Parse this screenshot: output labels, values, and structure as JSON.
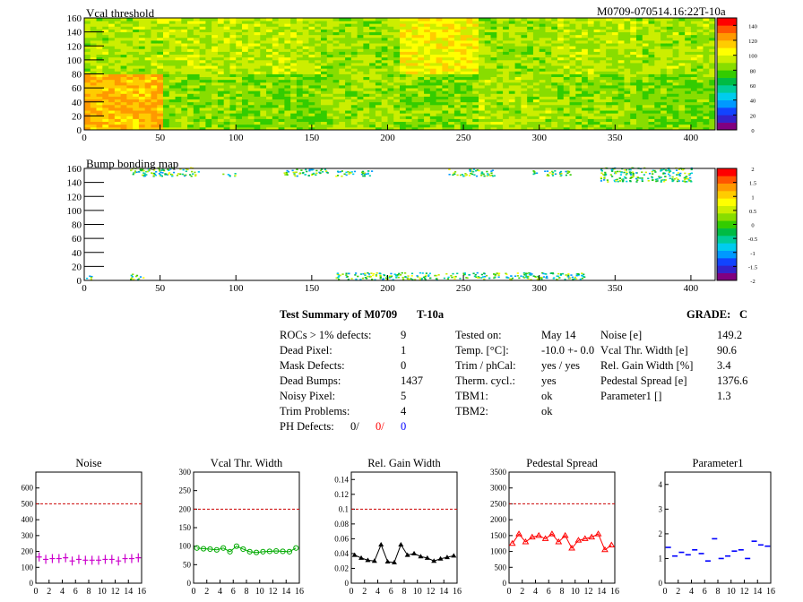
{
  "header": {
    "module_id": "M0709-070514.16:22T-10a"
  },
  "colors": {
    "red": "#ff0000",
    "blue": "#0000ff",
    "magenta": "#cc00cc",
    "green": "#00aa00",
    "black": "#000000",
    "dashed_limit": "#cc0000"
  },
  "summary": {
    "title": "Test Summary of M0709",
    "temp_label": "T-10a",
    "grade_label": "GRADE:",
    "grade": "C",
    "left": [
      {
        "label": "ROCs > 1% defects:",
        "value": "9"
      },
      {
        "label": "Dead Pixel:",
        "value": "1"
      },
      {
        "label": "Mask Defects:",
        "value": "0"
      },
      {
        "label": "Dead Bumps:",
        "value": "1437"
      },
      {
        "label": "Noisy Pixel:",
        "value": "5"
      },
      {
        "label": "Trim Problems:",
        "value": "4"
      }
    ],
    "ph_defects": {
      "label": "PH Defects:",
      "v1": "0/",
      "v2": "0/",
      "v3": "0"
    },
    "middle": [
      {
        "label": "Tested on:",
        "value": "May 14"
      },
      {
        "label": "Temp. [°C]:",
        "value": "-10.0 +- 0.0"
      },
      {
        "label": "Trim / phCal:",
        "value": "yes / yes"
      },
      {
        "label": "Therm. cycl.:",
        "value": "yes"
      },
      {
        "label": "TBM1:",
        "value": "ok"
      },
      {
        "label": "TBM2:",
        "value": "ok"
      }
    ],
    "right": [
      {
        "label": "Noise [e]",
        "value": "149.2"
      },
      {
        "label": "Vcal Thr. Width [e]",
        "value": "90.6"
      },
      {
        "label": "Rel. Gain Width [%]",
        "value": "3.4"
      },
      {
        "label": "Pedestal Spread [e]",
        "value": "1376.6"
      },
      {
        "label": "Parameter1 []",
        "value": "1.3"
      }
    ]
  },
  "chart_data": [
    {
      "type": "heatmap",
      "title": "Vcal threshold",
      "xlim": [
        0,
        416
      ],
      "ylim": [
        0,
        160
      ],
      "x_ticks": [
        "0",
        "50",
        "100",
        "150",
        "200",
        "250",
        "300",
        "350",
        "400"
      ],
      "y_ticks": [
        "0",
        "20",
        "40",
        "60",
        "80",
        "100",
        "120",
        "140",
        "160"
      ],
      "z_range": [
        0,
        150
      ],
      "z_ticks": [
        "0",
        "20",
        "40",
        "60",
        "80",
        "100",
        "120",
        "140"
      ],
      "palette": [
        "#800080",
        "#3322cc",
        "#1144ff",
        "#0099ff",
        "#00ccee",
        "#00cc99",
        "#00bb44",
        "#33cc00",
        "#88dd00",
        "#ccee00",
        "#ffff00",
        "#ffcc00",
        "#ff9900",
        "#ff5500",
        "#ff0000"
      ],
      "roc_mean_values": [
        [
          118,
          86,
          82,
          88,
          84,
          90,
          86,
          82
        ],
        [
          90,
          92,
          92,
          88,
          105,
          88,
          92,
          90
        ]
      ]
    },
    {
      "type": "heatmap",
      "title": "Bump bonding map",
      "xlim": [
        0,
        416
      ],
      "ylim": [
        0,
        160
      ],
      "x_ticks": [
        "0",
        "50",
        "100",
        "150",
        "200",
        "250",
        "300",
        "350",
        "400"
      ],
      "y_ticks": [
        "0",
        "20",
        "40",
        "60",
        "80",
        "100",
        "120",
        "140",
        "160"
      ],
      "z_range": [
        -2,
        2
      ],
      "z_ticks": [
        "-2",
        "-1.5",
        "-1",
        "-0.5",
        "0",
        "0.5",
        "1",
        "1.5",
        "2"
      ],
      "palette": [
        "#800080",
        "#3322cc",
        "#1144ff",
        "#0099ff",
        "#00ccee",
        "#00cc99",
        "#00bb44",
        "#33cc00",
        "#88dd00",
        "#ccee00",
        "#ffff00",
        "#ffcc00",
        "#ff9900",
        "#ff5500",
        "#ff0000"
      ],
      "defect_bands": [
        {
          "x": [
            30,
            75
          ],
          "y": [
            148,
            160
          ]
        },
        {
          "x": [
            90,
            100
          ],
          "y": [
            148,
            152
          ]
        },
        {
          "x": [
            130,
            160
          ],
          "y": [
            148,
            158
          ]
        },
        {
          "x": [
            165,
            190
          ],
          "y": [
            148,
            156
          ]
        },
        {
          "x": [
            240,
            270
          ],
          "y": [
            148,
            158
          ]
        },
        {
          "x": [
            295,
            320
          ],
          "y": [
            148,
            156
          ]
        },
        {
          "x": [
            340,
            400
          ],
          "y": [
            140,
            160
          ]
        },
        {
          "x": [
            30,
            40
          ],
          "y": [
            0,
            8
          ]
        },
        {
          "x": [
            165,
            330
          ],
          "y": [
            0,
            10
          ]
        },
        {
          "x": [
            0,
            5
          ],
          "y": [
            0,
            6
          ]
        }
      ]
    },
    {
      "type": "scatter",
      "title": "Noise",
      "x": [
        0,
        1,
        2,
        3,
        4,
        5,
        6,
        7,
        8,
        9,
        10,
        11,
        12,
        13,
        14,
        15
      ],
      "values": [
        165,
        150,
        155,
        155,
        160,
        140,
        150,
        145,
        145,
        145,
        150,
        150,
        140,
        155,
        155,
        160
      ],
      "xlim": [
        0,
        16
      ],
      "ylim": [
        0,
        700
      ],
      "limit": 500,
      "marker": "cross",
      "x_ticks": [
        "0",
        "2",
        "4",
        "6",
        "8",
        "10",
        "12",
        "14",
        "16"
      ],
      "y_ticks": [
        "0",
        "100",
        "200",
        "300",
        "400",
        "500",
        "600"
      ],
      "color": "#cc00cc"
    },
    {
      "type": "line",
      "title": "Vcal Thr. Width",
      "x": [
        0,
        1,
        2,
        3,
        4,
        5,
        6,
        7,
        8,
        9,
        10,
        11,
        12,
        13,
        14,
        15
      ],
      "values": [
        95,
        93,
        92,
        90,
        95,
        85,
        100,
        92,
        85,
        83,
        85,
        86,
        87,
        86,
        85,
        95
      ],
      "xlim": [
        0,
        16
      ],
      "ylim": [
        0,
        300
      ],
      "limit": 200,
      "marker": "circle",
      "x_ticks": [
        "0",
        "2",
        "4",
        "6",
        "8",
        "10",
        "12",
        "14",
        "16"
      ],
      "y_ticks": [
        "0",
        "50",
        "100",
        "150",
        "200",
        "250",
        "300"
      ],
      "color": "#00aa00"
    },
    {
      "type": "line",
      "title": "Rel. Gain Width",
      "x": [
        0,
        1,
        2,
        3,
        4,
        5,
        6,
        7,
        8,
        9,
        10,
        11,
        12,
        13,
        14,
        15
      ],
      "values": [
        0.038,
        0.034,
        0.031,
        0.03,
        0.052,
        0.029,
        0.028,
        0.052,
        0.038,
        0.04,
        0.036,
        0.034,
        0.03,
        0.033,
        0.035,
        0.037
      ],
      "xlim": [
        0,
        16
      ],
      "ylim": [
        0,
        0.15
      ],
      "limit": 0.1,
      "marker": "triangle",
      "x_ticks": [
        "0",
        "2",
        "4",
        "6",
        "8",
        "10",
        "12",
        "14",
        "16"
      ],
      "y_ticks": [
        "0",
        "0.02",
        "0.04",
        "0.06",
        "0.08",
        "0.1",
        "0.12",
        "0.14"
      ],
      "color": "#000000"
    },
    {
      "type": "line",
      "title": "Pedestal Spread",
      "x": [
        0,
        1,
        2,
        3,
        4,
        5,
        6,
        7,
        8,
        9,
        10,
        11,
        12,
        13,
        14,
        15
      ],
      "values": [
        1250,
        1550,
        1300,
        1450,
        1500,
        1400,
        1550,
        1300,
        1500,
        1100,
        1350,
        1400,
        1450,
        1550,
        1050,
        1200
      ],
      "xlim": [
        0,
        16
      ],
      "ylim": [
        0,
        3500
      ],
      "limit": 2500,
      "marker": "triangle-open",
      "x_ticks": [
        "0",
        "2",
        "4",
        "6",
        "8",
        "10",
        "12",
        "14",
        "16"
      ],
      "y_ticks": [
        "0",
        "500",
        "1000",
        "1500",
        "2000",
        "2500",
        "3000",
        "3500"
      ],
      "color": "#ff0000"
    },
    {
      "type": "scatter",
      "title": "Parameter1",
      "x": [
        0,
        1,
        2,
        3,
        4,
        5,
        6,
        7,
        8,
        9,
        10,
        11,
        12,
        13,
        14,
        15
      ],
      "values": [
        1.45,
        1.1,
        1.25,
        1.15,
        1.35,
        1.2,
        0.9,
        1.8,
        1.0,
        1.1,
        1.3,
        1.35,
        1.0,
        1.7,
        1.55,
        1.5
      ],
      "xlim": [
        0,
        16
      ],
      "ylim": [
        0,
        4.5
      ],
      "marker": "dash",
      "x_ticks": [
        "0",
        "2",
        "4",
        "6",
        "8",
        "10",
        "12",
        "14",
        "16"
      ],
      "y_ticks": [
        "0",
        "1",
        "2",
        "3",
        "4"
      ],
      "color": "#0000ff"
    }
  ]
}
